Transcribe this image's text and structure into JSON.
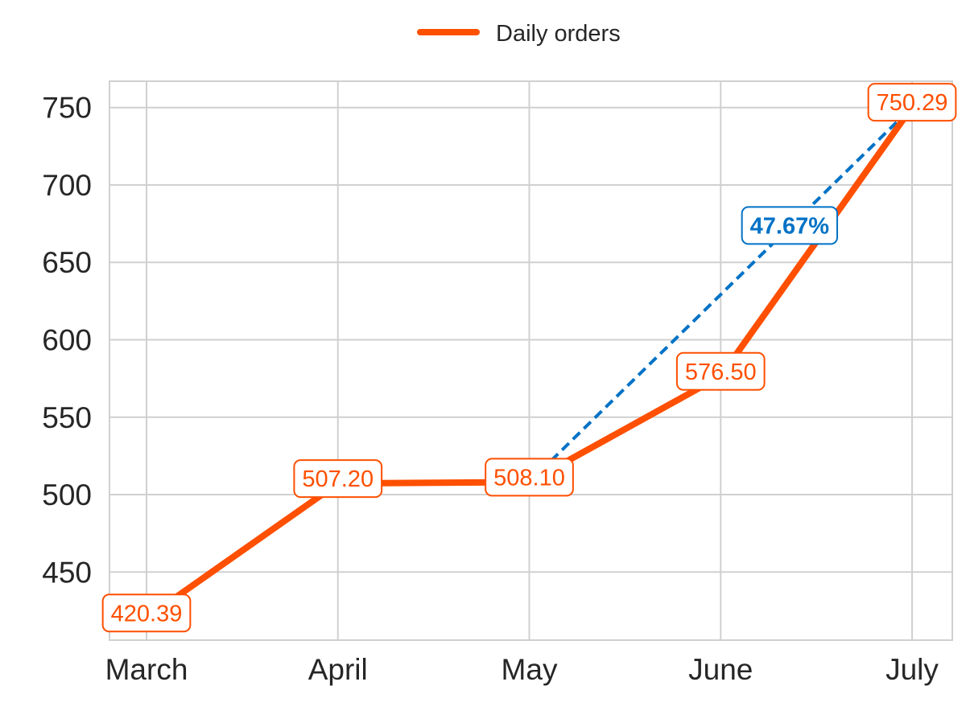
{
  "chart_data": {
    "type": "line",
    "categories": [
      "March",
      "April",
      "May",
      "June",
      "July"
    ],
    "series": [
      {
        "name": "Daily orders",
        "values": [
          420.39,
          507.2,
          508.1,
          576.5,
          750.29
        ],
        "labels": [
          "420.39",
          "507.20",
          "508.10",
          "576.50",
          "750.29"
        ],
        "color": "#FF4F00"
      }
    ],
    "annotation": {
      "label": "47.67%",
      "from_category": "May",
      "to_category": "July",
      "color": "#0072C6"
    },
    "y_ticks": [
      {
        "value": 450,
        "label": "450"
      },
      {
        "value": 500,
        "label": "500"
      },
      {
        "value": 550,
        "label": "550"
      },
      {
        "value": 600,
        "label": "600"
      },
      {
        "value": 650,
        "label": "650"
      },
      {
        "value": 700,
        "label": "700"
      },
      {
        "value": 750,
        "label": "750"
      }
    ],
    "ylim": [
      406.0,
      767.0
    ],
    "xlabel": "",
    "ylabel": "",
    "title": "",
    "grid": true,
    "legend_position": "top-center",
    "colors": {
      "grid": "#D0D0D0",
      "axis_text": "#262626",
      "background": "#FFFFFF"
    }
  }
}
